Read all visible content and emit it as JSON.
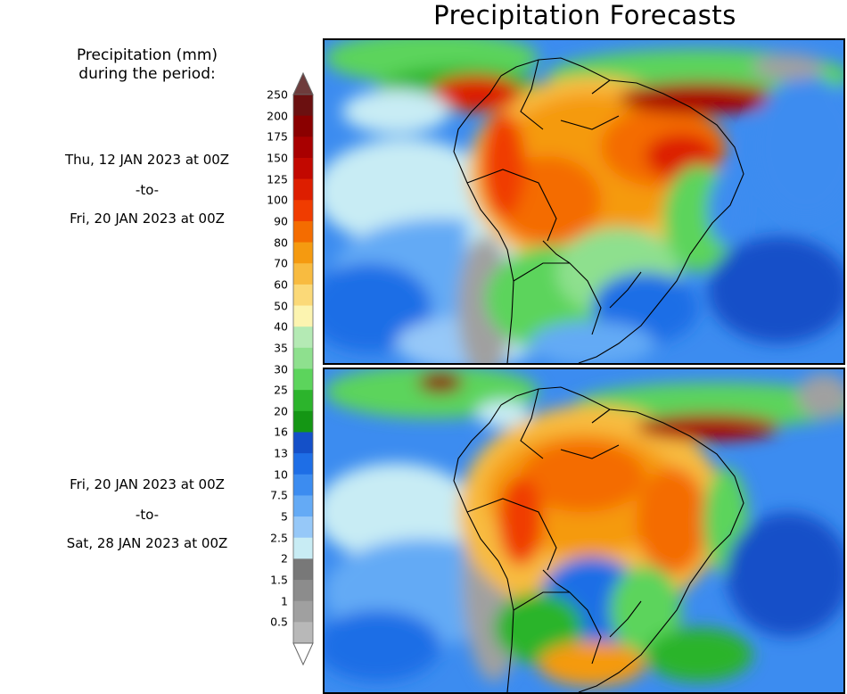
{
  "title": "Precipitation Forecasts",
  "legend_heading": {
    "line1": "Precipitation (mm)",
    "line2": "during the period:"
  },
  "periods": [
    {
      "start": "Thu, 12 JAN 2023 at 00Z",
      "separator": "-to-",
      "end": "Fri, 20 JAN 2023 at 00Z"
    },
    {
      "start": "Fri, 20 JAN 2023 at 00Z",
      "separator": "-to-",
      "end": "Sat, 28 JAN 2023 at 00Z"
    }
  ],
  "colorbar": {
    "labels": [
      "250",
      "200",
      "175",
      "150",
      "125",
      "100",
      "90",
      "80",
      "70",
      "60",
      "50",
      "40",
      "35",
      "30",
      "25",
      "20",
      "16",
      "13",
      "10",
      "7.5",
      "5",
      "2.5",
      "2",
      "1.5",
      "1",
      "0.5"
    ],
    "colors": [
      "#6b1010",
      "#8a0000",
      "#a80000",
      "#c20800",
      "#dd1e00",
      "#f03c00",
      "#f46c00",
      "#f59a10",
      "#f8bb40",
      "#fbd978",
      "#fcf4b0",
      "#b4eab4",
      "#8ee08e",
      "#5cd45c",
      "#2cb42c",
      "#149614",
      "#1450c8",
      "#1e6ee6",
      "#3c8cf0",
      "#64aaf5",
      "#96c8f8",
      "#c8ecf4",
      "#787878",
      "#8c8c8c",
      "#a0a0a0",
      "#b8b8b8",
      "#d0d0d0"
    ],
    "over_color": "#6e3c3c",
    "under_color": "#ffffff"
  }
}
